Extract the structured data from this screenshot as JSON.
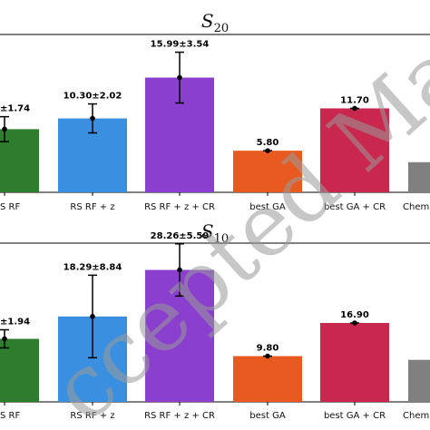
{
  "watermark": "ccepted Manusc",
  "chart_data": [
    {
      "type": "bar",
      "title": "S",
      "title_subscript": "20",
      "categories": [
        "RS RF",
        "RS RF + z",
        "RS RF + z + CR",
        "best GA",
        "best GA + CR",
        "Chem"
      ],
      "values": [
        8.8,
        10.3,
        15.99,
        5.8,
        11.7,
        4.2
      ],
      "errors": [
        1.74,
        2.02,
        3.54,
        null,
        null,
        null
      ],
      "value_labels": [
        "±1.74",
        "10.30±2.02",
        "15.99±3.54",
        "5.80",
        "11.70",
        ""
      ],
      "colors": [
        "#2e7d2e",
        "#3b8fe0",
        "#8a3fcf",
        "#e85a1f",
        "#c9274d",
        "#808080"
      ],
      "ylim": [
        0,
        22
      ],
      "grid": false
    },
    {
      "type": "bar",
      "title": "S",
      "title_subscript": "10",
      "categories": [
        "RS RF",
        "RS RF + z",
        "RS RF + z + CR",
        "best GA",
        "best GA + CR",
        "Chem"
      ],
      "values": [
        13.5,
        18.29,
        28.26,
        9.8,
        16.9,
        9.0
      ],
      "errors": [
        1.94,
        8.84,
        5.59,
        null,
        null,
        null
      ],
      "value_labels": [
        "±1.94",
        "18.29±8.84",
        "28.26±5.59",
        "9.80",
        "16.90",
        ""
      ],
      "colors": [
        "#2e7d2e",
        "#3b8fe0",
        "#8a3fcf",
        "#e85a1f",
        "#c9274d",
        "#808080"
      ],
      "ylim": [
        0,
        34
      ],
      "grid": false
    }
  ]
}
